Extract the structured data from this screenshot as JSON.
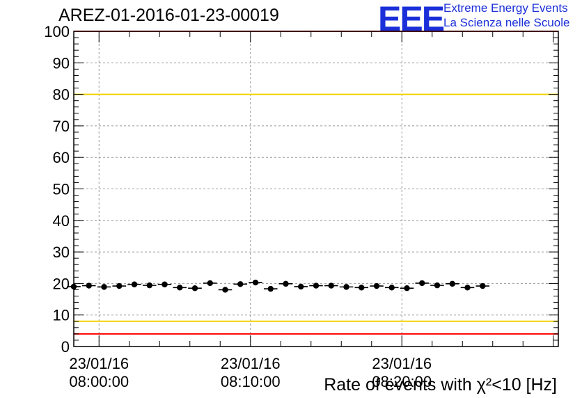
{
  "header": {
    "title": "AREZ-01-2016-01-23-00019",
    "logo_text": "EEE",
    "logo_line1": "Extreme Energy Events",
    "logo_line2": "La Scienza nelle Scuole"
  },
  "chart_data": {
    "type": "scatter",
    "title": "AREZ-01-2016-01-23-00019",
    "xlabel": "",
    "ylabel": "",
    "ylim": [
      0,
      100
    ],
    "yticks": [
      0,
      10,
      20,
      30,
      40,
      50,
      60,
      70,
      80,
      90,
      100
    ],
    "xlim": [
      "07:58:20",
      "08:30:20"
    ],
    "xticks": [
      {
        "t": "08:00:00",
        "date": "23/01/16",
        "time": "08:00:00"
      },
      {
        "t": "08:10:00",
        "date": "23/01/16",
        "time": "08:10:00"
      },
      {
        "t": "08:20:00",
        "date": "23/01/16",
        "time": "08:20:00"
      }
    ],
    "overlay_text": "Rate of events with χ²<10 [Hz]",
    "grid": true,
    "reference_lines": [
      {
        "y": 4,
        "color": "#ff0000"
      },
      {
        "y": 8,
        "color": "#f2d200"
      },
      {
        "y": 80,
        "color": "#f2d200"
      },
      {
        "y": 100,
        "color": "#ff0000"
      }
    ],
    "bin_width_seconds": 60,
    "series": [
      {
        "color": "#000000",
        "points": [
          {
            "x": "07:58:20",
            "y": 19.0
          },
          {
            "x": "07:59:20",
            "y": 19.3
          },
          {
            "x": "08:00:20",
            "y": 18.9
          },
          {
            "x": "08:01:20",
            "y": 19.2
          },
          {
            "x": "08:02:20",
            "y": 19.7
          },
          {
            "x": "08:03:20",
            "y": 19.4
          },
          {
            "x": "08:04:20",
            "y": 19.7
          },
          {
            "x": "08:05:20",
            "y": 18.7
          },
          {
            "x": "08:06:20",
            "y": 18.5
          },
          {
            "x": "08:07:20",
            "y": 20.1
          },
          {
            "x": "08:08:20",
            "y": 18.0
          },
          {
            "x": "08:09:20",
            "y": 19.8
          },
          {
            "x": "08:10:20",
            "y": 20.3
          },
          {
            "x": "08:11:20",
            "y": 18.3
          },
          {
            "x": "08:12:20",
            "y": 19.9
          },
          {
            "x": "08:13:20",
            "y": 19.0
          },
          {
            "x": "08:14:20",
            "y": 19.3
          },
          {
            "x": "08:15:20",
            "y": 19.3
          },
          {
            "x": "08:16:20",
            "y": 18.9
          },
          {
            "x": "08:17:20",
            "y": 18.7
          },
          {
            "x": "08:18:20",
            "y": 19.2
          },
          {
            "x": "08:19:20",
            "y": 18.7
          },
          {
            "x": "08:20:20",
            "y": 18.5
          },
          {
            "x": "08:21:20",
            "y": 20.1
          },
          {
            "x": "08:22:20",
            "y": 19.4
          },
          {
            "x": "08:23:20",
            "y": 19.9
          },
          {
            "x": "08:24:20",
            "y": 18.7
          },
          {
            "x": "08:25:20",
            "y": 19.2
          }
        ]
      }
    ]
  }
}
